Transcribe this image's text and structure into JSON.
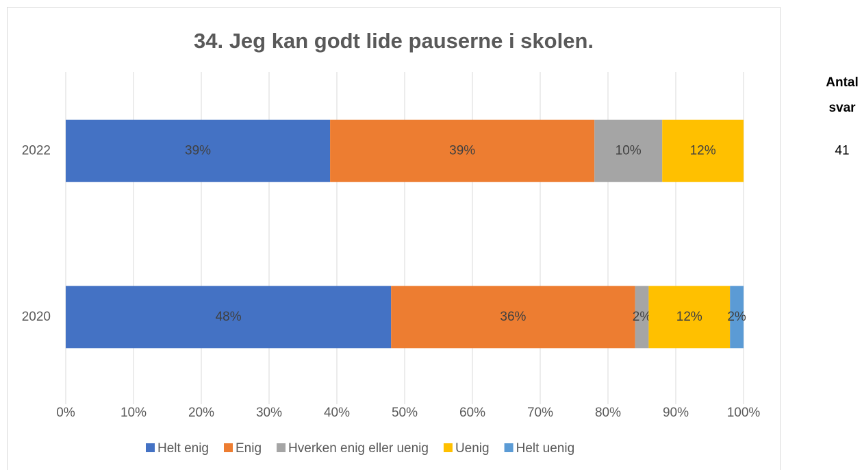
{
  "chart_data": {
    "type": "stacked_bar_horizontal",
    "title": "34. Jeg kan godt lide pauserne i skolen.",
    "categories": [
      "2022",
      "2020"
    ],
    "series": [
      {
        "name": "Helt enig",
        "color": "#4472c4",
        "values": [
          39,
          48
        ]
      },
      {
        "name": "Enig",
        "color": "#ed7d31",
        "values": [
          39,
          36
        ]
      },
      {
        "name": "Hverken enig eller uenig",
        "color": "#a5a5a5",
        "values": [
          10,
          2
        ]
      },
      {
        "name": "Uenig",
        "color": "#ffc000",
        "values": [
          12,
          12
        ]
      },
      {
        "name": "Helt uenig",
        "color": "#5b9bd5",
        "values": [
          null,
          2
        ]
      }
    ],
    "value_labels": [
      [
        "39%",
        "48%"
      ],
      [
        "39%",
        "36%"
      ],
      [
        "10%",
        "2%"
      ],
      [
        "12%",
        "12%"
      ],
      [
        null,
        "2%"
      ]
    ],
    "xlim": [
      0,
      100
    ],
    "xticks": [
      {
        "value": 0,
        "label": "0%"
      },
      {
        "value": 10,
        "label": "10%"
      },
      {
        "value": 20,
        "label": "20%"
      },
      {
        "value": 30,
        "label": "30%"
      },
      {
        "value": 40,
        "label": "40%"
      },
      {
        "value": 50,
        "label": "50%"
      },
      {
        "value": 60,
        "label": "60%"
      },
      {
        "value": 70,
        "label": "70%"
      },
      {
        "value": 80,
        "label": "80%"
      },
      {
        "value": 90,
        "label": "90%"
      },
      {
        "value": 100,
        "label": "100%"
      }
    ],
    "grid": true,
    "legend": "bottom",
    "count_header": [
      "Antal",
      "svar"
    ],
    "counts": [
      41,
      null
    ]
  }
}
